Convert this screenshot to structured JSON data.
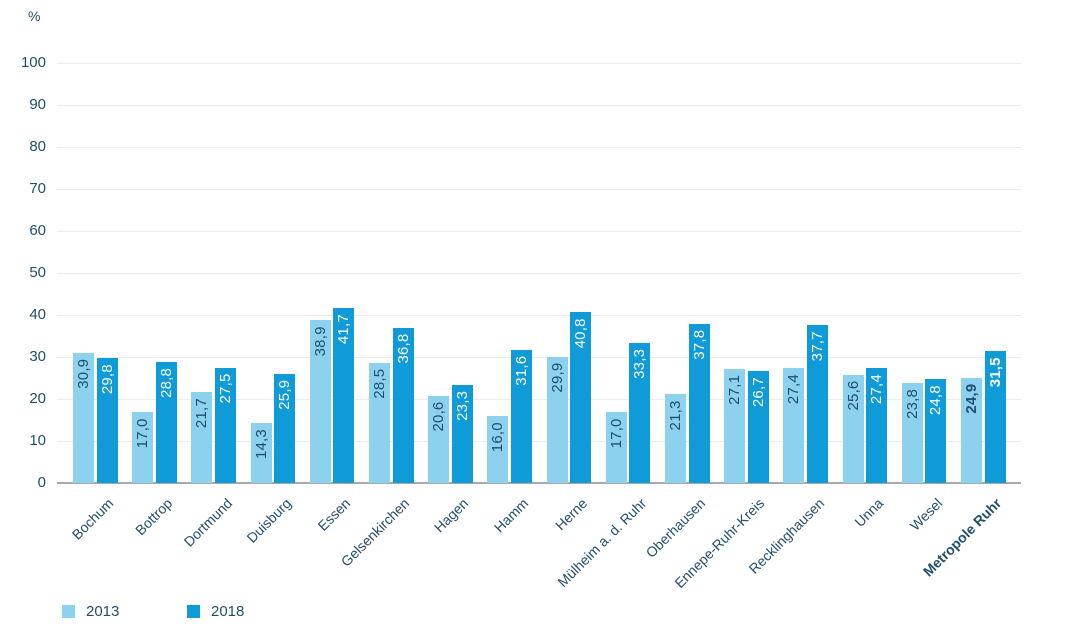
{
  "chart_data": {
    "type": "bar",
    "title": "",
    "unit_label": "%",
    "xlabel": "",
    "ylabel": "%",
    "ylim": [
      0,
      100
    ],
    "yticks": [
      0,
      10,
      20,
      30,
      40,
      50,
      60,
      70,
      80,
      90,
      100
    ],
    "grid": true,
    "legend_position": "bottom-left",
    "categories": [
      "Bochum",
      "Bottrop",
      "Dortmund",
      "Duisburg",
      "Essen",
      "Gelsenkirchen",
      "Hagen",
      "Hamm",
      "Herne",
      "Mülheim a. d. Ruhr",
      "Oberhausen",
      "Ennepe-Ruhr-Kreis",
      "Recklinghausen",
      "Unna",
      "Wesel",
      "Metropole Ruhr"
    ],
    "emphasized_category": "Metropole Ruhr",
    "series": [
      {
        "name": "2013",
        "color": "#8CD2EE",
        "label_color": "#1F4E6F",
        "values": [
          30.9,
          17.0,
          21.7,
          14.3,
          38.9,
          28.5,
          20.6,
          16.0,
          29.9,
          17.0,
          21.3,
          27.1,
          27.4,
          25.6,
          23.8,
          24.9
        ],
        "labels": [
          "30,9",
          "17,0",
          "21,7",
          "14,3",
          "38,9",
          "28,5",
          "20,6",
          "16,0",
          "29,9",
          "17,0",
          "21,3",
          "27,1",
          "27,4",
          "25,6",
          "23,8",
          "24,9"
        ]
      },
      {
        "name": "2018",
        "color": "#0E9BD7",
        "label_color": "#FFFFFF",
        "values": [
          29.8,
          28.8,
          27.5,
          25.9,
          41.7,
          36.8,
          23.3,
          31.6,
          40.8,
          33.3,
          37.8,
          26.7,
          37.7,
          27.4,
          24.8,
          31.5
        ],
        "labels": [
          "29,8",
          "28,8",
          "27,5",
          "25,9",
          "41,7",
          "36,8",
          "23,3",
          "31,6",
          "40,8",
          "33,3",
          "37,8",
          "26,7",
          "37,7",
          "27,4",
          "24,8",
          "31,5"
        ]
      }
    ]
  },
  "legend": {
    "items": [
      {
        "label": "2013",
        "color": "#8CD2EE"
      },
      {
        "label": "2018",
        "color": "#0E9BD7"
      }
    ]
  },
  "colors": {
    "axis_text": "#1F4E6F",
    "gridline": "#ECECED",
    "baseline": "#A7A9AC",
    "background": "#FFFFFF"
  }
}
